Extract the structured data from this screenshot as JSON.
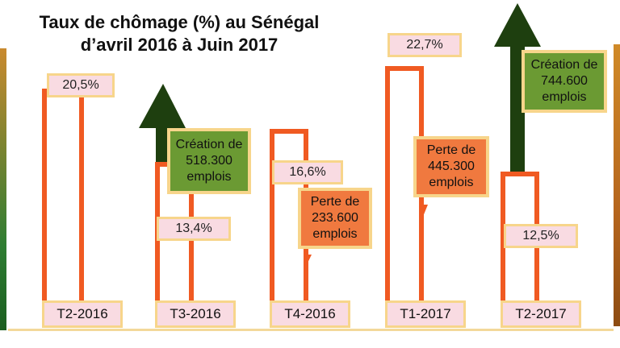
{
  "title_line1": "Taux de chômage (%) au Sénégal",
  "title_line2": "d’avril 2016 à Juin 2017",
  "chart_data": {
    "type": "bar",
    "categories": [
      "T2-2016",
      "T3-2016",
      "T4-2016",
      "T1-2017",
      "T2-2017"
    ],
    "values": [
      20.5,
      13.4,
      16.6,
      22.7,
      12.5
    ],
    "value_labels": [
      "20,5%",
      "13,4%",
      "16,6%",
      "22,7%",
      "12,5%"
    ],
    "ylim": [
      0,
      23
    ],
    "grid": false,
    "annotations": [
      {
        "at": "T3-2016",
        "direction": "up",
        "kind": "creation",
        "line1": "Création de",
        "line2": "518.300",
        "line3": "emplois",
        "color": "#6b9a33"
      },
      {
        "at": "T4-2016",
        "direction": "down",
        "kind": "perte",
        "line1": "Perte de",
        "line2": "233.600",
        "line3": "emplois",
        "color": "#f0793f"
      },
      {
        "at": "T1-2017",
        "direction": "down",
        "kind": "perte",
        "line1": "Perte de",
        "line2": "445.300",
        "line3": "emplois",
        "color": "#f0793f"
      },
      {
        "at": "T2-2017",
        "direction": "up",
        "kind": "creation",
        "line1": "Création de",
        "line2": "744.600",
        "line3": "emplois",
        "color": "#6b9a33"
      }
    ],
    "colors": {
      "bar": "#f05a22",
      "up_arrow": "#1e3f0f",
      "down_arrow": "#f05a22",
      "label_bg": "#f9dbe2",
      "label_border": "#f7d58b"
    }
  }
}
